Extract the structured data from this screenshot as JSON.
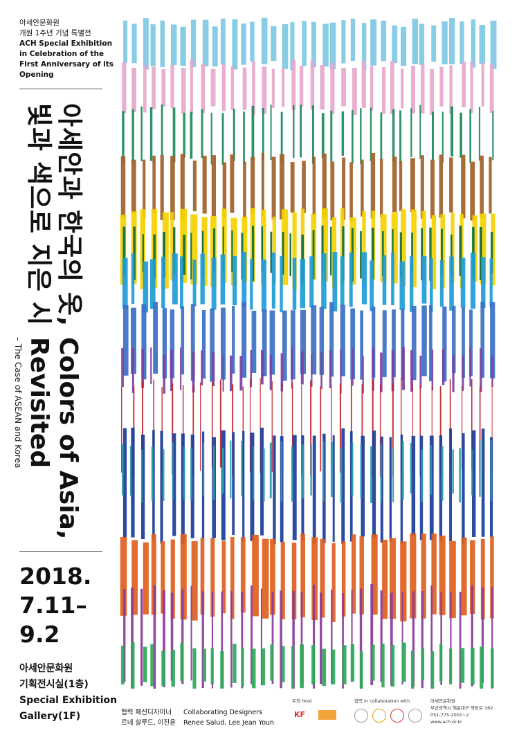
{
  "header": {
    "org": "아세안문화원",
    "event_ko": "개원 1주년 기념 특별전",
    "event_en": [
      "ACH Special Exhibition",
      "in Celebration of the",
      "First Anniversary of its",
      "Opening"
    ]
  },
  "title_ko": [
    "아세안과 한국의 옷,",
    "빛과 색으로 지은 시"
  ],
  "title_en": [
    "Colors of Asia,",
    "Revisited"
  ],
  "subtitle": "– The Case of ASEAN and Korea",
  "dates": [
    "2018.",
    "7.11–",
    "9.2"
  ],
  "venue": [
    "아세안문화원",
    "기획전시실(1층)",
    "Special Exhibition",
    "Gallery(1F)"
  ],
  "footer": {
    "designers_ko_label": "협력 패션디자이너",
    "designers_ko": "르네 살루드, 이진윤",
    "designers_en_label": "Collaborating Designers",
    "designers_en": "Renee Salud, Lee Jean Youn",
    "host_label": "주최 Host",
    "host_logo": "KF",
    "collab_label": "협력 In collaboration with",
    "contact": [
      "아세안문화원",
      "부산광역시 해운대구 좌동로 162",
      "051-775-2001~2",
      "www.ach.or.kr"
    ]
  }
}
